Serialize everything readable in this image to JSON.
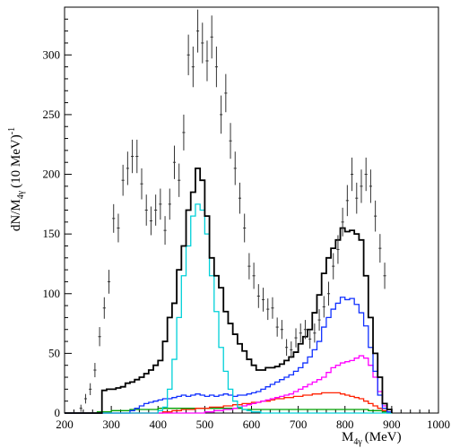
{
  "chart_data": {
    "type": "histogram",
    "xlabel": "M",
    "xlabel_sub": "4γ",
    "xlabel_unit": "(MeV)",
    "ylabel": "dN/M",
    "ylabel_sub": "4γ",
    "ylabel_unit": "(10 MeV)",
    "ylabel_exp": "-1",
    "xlim": [
      200,
      1000
    ],
    "ylim": [
      0,
      340
    ],
    "xticks": [
      200,
      300,
      400,
      500,
      600,
      700,
      800,
      900,
      1000
    ],
    "yticks": [
      0,
      50,
      100,
      150,
      200,
      250,
      300
    ],
    "bin_width": 10,
    "data_points": {
      "style": "error-bars",
      "x": [
        235,
        245,
        255,
        265,
        275,
        285,
        295,
        305,
        315,
        325,
        335,
        345,
        355,
        365,
        375,
        385,
        395,
        405,
        415,
        425,
        435,
        445,
        455,
        465,
        475,
        485,
        495,
        505,
        515,
        525,
        535,
        545,
        555,
        565,
        575,
        585,
        595,
        605,
        615,
        625,
        635,
        645,
        655,
        665,
        675,
        685,
        695,
        705,
        715,
        725,
        735,
        745,
        755,
        765,
        775,
        785,
        795,
        805,
        815,
        825,
        835,
        845,
        855,
        865,
        875,
        885
      ],
      "y": [
        4,
        12,
        20,
        36,
        64,
        88,
        110,
        163,
        155,
        195,
        205,
        215,
        215,
        192,
        170,
        161,
        170,
        175,
        153,
        175,
        210,
        195,
        235,
        300,
        290,
        320,
        310,
        295,
        315,
        290,
        250,
        268,
        228,
        205,
        180,
        155,
        123,
        115,
        98,
        95,
        87,
        88,
        72,
        70,
        55,
        53,
        63,
        67,
        70,
        62,
        67,
        78,
        89,
        100,
        123,
        137,
        160,
        178,
        200,
        180,
        190,
        200,
        190,
        165,
        138,
        115
      ],
      "err": [
        3,
        4,
        5,
        6,
        8,
        9,
        10,
        12,
        12,
        13,
        14,
        14,
        14,
        13,
        13,
        12,
        13,
        13,
        12,
        13,
        14,
        14,
        15,
        17,
        17,
        18,
        17,
        17,
        18,
        17,
        16,
        16,
        15,
        14,
        13,
        12,
        11,
        11,
        10,
        10,
        9,
        9,
        8,
        8,
        7,
        7,
        8,
        8,
        8,
        8,
        8,
        9,
        9,
        10,
        11,
        12,
        12,
        13,
        14,
        13,
        14,
        14,
        14,
        13,
        12,
        11
      ]
    },
    "series": [
      {
        "color": "#000000",
        "bin_edges": [
          200,
          210,
          220,
          230,
          240,
          250,
          260,
          270,
          280,
          290,
          300,
          310,
          320,
          330,
          340,
          350,
          360,
          370,
          380,
          390,
          400,
          410,
          420,
          430,
          440,
          450,
          460,
          470,
          480,
          490,
          500,
          510,
          520,
          530,
          540,
          550,
          560,
          570,
          580,
          590,
          600,
          610,
          620,
          630,
          640,
          650,
          660,
          670,
          680,
          690,
          700,
          710,
          720,
          730,
          740,
          750,
          760,
          770,
          780,
          790,
          800,
          810,
          820,
          830,
          840,
          850,
          860,
          870,
          880,
          890,
          900
        ],
        "values": [
          0,
          0,
          0,
          0,
          0,
          0,
          0,
          0,
          19,
          20,
          20,
          21,
          22,
          25,
          26,
          28,
          30,
          33,
          36,
          40,
          44,
          60,
          80,
          92,
          120,
          140,
          170,
          185,
          205,
          195,
          165,
          130,
          115,
          105,
          85,
          75,
          66,
          58,
          52,
          45,
          40,
          36,
          36,
          38,
          38,
          39,
          41,
          44,
          47,
          51,
          58,
          64,
          70,
          84,
          99,
          117,
          130,
          138,
          145,
          155,
          152,
          153,
          150,
          145,
          115,
          80,
          50,
          30,
          8,
          3
        ]
      },
      {
        "color": "#00d0d8",
        "bin_edges": [
          200,
          210,
          220,
          230,
          240,
          250,
          260,
          270,
          280,
          290,
          300,
          310,
          320,
          330,
          340,
          350,
          360,
          370,
          380,
          390,
          400,
          410,
          420,
          430,
          440,
          450,
          460,
          470,
          480,
          490,
          500,
          510,
          520,
          530,
          540,
          550,
          560,
          570,
          580,
          590,
          600,
          610,
          620,
          630,
          640,
          650,
          660,
          670,
          680,
          690,
          700,
          710,
          720,
          730,
          740,
          750,
          760,
          770,
          780,
          790,
          800,
          810,
          820,
          830,
          840,
          850,
          860,
          870,
          880,
          890,
          900
        ],
        "values": [
          0,
          0,
          0,
          0,
          0,
          0,
          0,
          0,
          0,
          0,
          0,
          0,
          0,
          0,
          0,
          0,
          0,
          0,
          0,
          0,
          2,
          5,
          20,
          45,
          80,
          115,
          140,
          165,
          175,
          170,
          150,
          115,
          85,
          55,
          35,
          20,
          10,
          5,
          3,
          2,
          1,
          1,
          0,
          0,
          0,
          0,
          0,
          0,
          0,
          0,
          0,
          0,
          0,
          0,
          0,
          0,
          0,
          0,
          0,
          0,
          0,
          0,
          0,
          0,
          0,
          0,
          0,
          0,
          0,
          0
        ]
      },
      {
        "color": "#1030ff",
        "bin_edges": [
          200,
          210,
          220,
          230,
          240,
          250,
          260,
          270,
          280,
          290,
          300,
          310,
          320,
          330,
          340,
          350,
          360,
          370,
          380,
          390,
          400,
          410,
          420,
          430,
          440,
          450,
          460,
          470,
          480,
          490,
          500,
          510,
          520,
          530,
          540,
          550,
          560,
          570,
          580,
          590,
          600,
          610,
          620,
          630,
          640,
          650,
          660,
          670,
          680,
          690,
          700,
          710,
          720,
          730,
          740,
          750,
          760,
          770,
          780,
          790,
          800,
          810,
          820,
          830,
          840,
          850,
          860,
          870,
          880,
          890,
          900
        ],
        "values": [
          0,
          0,
          0,
          0,
          0,
          0,
          0,
          0,
          0,
          0,
          0,
          0,
          0,
          0,
          2,
          4,
          6,
          8,
          9,
          10,
          11,
          12,
          12,
          13,
          14,
          15,
          14,
          15,
          16,
          15,
          14,
          15,
          14,
          15,
          16,
          15,
          14,
          15,
          15,
          16,
          17,
          18,
          20,
          22,
          24,
          26,
          28,
          30,
          32,
          35,
          38,
          42,
          47,
          53,
          60,
          72,
          80,
          87,
          92,
          97,
          95,
          96,
          91,
          84,
          73,
          55,
          35,
          15,
          4,
          1
        ]
      },
      {
        "color": "#ff00ff",
        "bin_edges": [
          200,
          210,
          220,
          230,
          240,
          250,
          260,
          270,
          280,
          290,
          300,
          310,
          320,
          330,
          340,
          350,
          360,
          370,
          380,
          390,
          400,
          410,
          420,
          430,
          440,
          450,
          460,
          470,
          480,
          490,
          500,
          510,
          520,
          530,
          540,
          550,
          560,
          570,
          580,
          590,
          600,
          610,
          620,
          630,
          640,
          650,
          660,
          670,
          680,
          690,
          700,
          710,
          720,
          730,
          740,
          750,
          760,
          770,
          780,
          790,
          800,
          810,
          820,
          830,
          840,
          850,
          860,
          870,
          880,
          890,
          900
        ],
        "values": [
          0,
          0,
          0,
          0,
          0,
          0,
          0,
          0,
          0,
          0,
          0,
          0,
          0,
          0,
          0,
          0,
          0,
          0,
          0,
          0,
          0,
          0,
          0,
          0,
          0,
          0,
          0,
          0,
          0,
          0,
          1,
          1,
          2,
          2,
          3,
          3,
          4,
          5,
          6,
          7,
          8,
          9,
          10,
          11,
          12,
          13,
          14,
          15,
          16,
          18,
          20,
          22,
          24,
          26,
          28,
          30,
          34,
          38,
          40,
          42,
          43,
          44,
          46,
          48,
          46,
          40,
          30,
          18,
          6,
          1
        ]
      },
      {
        "color": "#ff2000",
        "bin_edges": [
          200,
          210,
          220,
          230,
          240,
          250,
          260,
          270,
          280,
          290,
          300,
          310,
          320,
          330,
          340,
          350,
          360,
          370,
          380,
          390,
          400,
          410,
          420,
          430,
          440,
          450,
          460,
          470,
          480,
          490,
          500,
          510,
          520,
          530,
          540,
          550,
          560,
          570,
          580,
          590,
          600,
          610,
          620,
          630,
          640,
          650,
          660,
          670,
          680,
          690,
          700,
          710,
          720,
          730,
          740,
          750,
          760,
          770,
          780,
          790,
          800,
          810,
          820,
          830,
          840,
          850,
          860,
          870,
          880,
          890,
          900
        ],
        "values": [
          0,
          0,
          0,
          0,
          0,
          0,
          0,
          0,
          0,
          0,
          0,
          0,
          0,
          0,
          0,
          0,
          0,
          0,
          0,
          0,
          0,
          1,
          1,
          2,
          2,
          3,
          3,
          3,
          4,
          4,
          4,
          5,
          5,
          5,
          6,
          6,
          7,
          7,
          8,
          8,
          9,
          9,
          10,
          10,
          11,
          12,
          12,
          13,
          13,
          14,
          14,
          15,
          15,
          16,
          16,
          17,
          17,
          17,
          17,
          16,
          15,
          14,
          13,
          12,
          10,
          8,
          6,
          4,
          2,
          1
        ]
      },
      {
        "color": "#00a000",
        "bin_edges": [
          200,
          210,
          220,
          230,
          240,
          250,
          260,
          270,
          280,
          290,
          300,
          310,
          320,
          330,
          340,
          350,
          360,
          370,
          380,
          390,
          400,
          410,
          420,
          430,
          440,
          450,
          460,
          470,
          480,
          490,
          500,
          510,
          520,
          530,
          540,
          550,
          560,
          570,
          580,
          590,
          600,
          610,
          620,
          630,
          640,
          650,
          660,
          670,
          680,
          690,
          700,
          710,
          720,
          730,
          740,
          750,
          760,
          770,
          780,
          790,
          800,
          810,
          820,
          830,
          840,
          850,
          860,
          870,
          880,
          890,
          900
        ],
        "values": [
          0,
          0,
          0,
          0,
          0,
          0,
          0,
          1,
          1,
          1,
          2,
          2,
          2,
          2,
          3,
          3,
          3,
          3,
          3,
          3,
          4,
          4,
          4,
          4,
          4,
          4,
          4,
          4,
          4,
          4,
          4,
          4,
          4,
          4,
          4,
          4,
          4,
          4,
          3,
          3,
          3,
          3,
          3,
          3,
          3,
          3,
          3,
          3,
          3,
          3,
          3,
          3,
          3,
          3,
          3,
          3,
          3,
          3,
          3,
          3,
          3,
          3,
          3,
          3,
          3,
          2,
          2,
          2,
          1,
          0
        ]
      }
    ]
  }
}
